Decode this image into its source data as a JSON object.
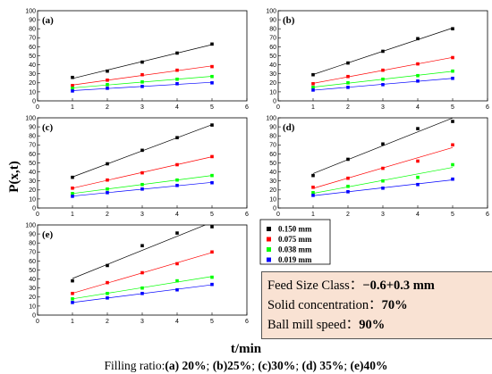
{
  "figure": {
    "ylabel": "P(x,t)",
    "xlabel": "t/min",
    "caption": {
      "prefix": "Filling ratio:",
      "parts": [
        "(a) 20%",
        "; ",
        "(b)25%",
        "; ",
        "(c)30%",
        "; ",
        "(d) 35%",
        "; ",
        "(e)40%"
      ]
    }
  },
  "info_box": {
    "lines": [
      {
        "label": "Feed  Size Class：",
        "value": "−0.6+0.3 mm"
      },
      {
        "label": "Solid concentration：",
        "value": "70%"
      },
      {
        "label": "Ball mill speed：",
        "value": "90%"
      }
    ]
  },
  "legend": [
    {
      "label": "0.150 mm",
      "color": "#000000"
    },
    {
      "label": "0.075 mm",
      "color": "#ff0000"
    },
    {
      "label": "0.038 mm",
      "color": "#00ff00"
    },
    {
      "label": "0.019 mm",
      "color": "#0000ff"
    }
  ],
  "chart_data": [
    {
      "type": "scatter",
      "panel_label": "(a)",
      "x": [
        1,
        2,
        3,
        4,
        5
      ],
      "xlim": [
        0,
        6
      ],
      "ylim": [
        0,
        100
      ],
      "xticks": [
        0,
        1,
        2,
        3,
        4,
        5,
        6
      ],
      "yticks": [
        0,
        10,
        20,
        30,
        40,
        50,
        60,
        70,
        80,
        90,
        100
      ],
      "series": [
        {
          "name": "0.150 mm",
          "color": "#000000",
          "values": [
            26,
            33,
            43,
            53,
            63
          ]
        },
        {
          "name": "0.075 mm",
          "color": "#ff0000",
          "values": [
            17,
            23,
            29,
            34,
            38
          ]
        },
        {
          "name": "0.038 mm",
          "color": "#00ff00",
          "values": [
            14,
            18,
            21,
            24,
            27
          ]
        },
        {
          "name": "0.019 mm",
          "color": "#0000ff",
          "values": [
            11,
            14,
            16,
            19,
            20
          ]
        }
      ]
    },
    {
      "type": "scatter",
      "panel_label": "(b)",
      "x": [
        1,
        2,
        3,
        4,
        5
      ],
      "xlim": [
        0,
        6
      ],
      "ylim": [
        0,
        100
      ],
      "xticks": [
        0,
        1,
        2,
        3,
        4,
        5,
        6
      ],
      "yticks": [
        0,
        10,
        20,
        30,
        40,
        50,
        60,
        70,
        80,
        90,
        100
      ],
      "series": [
        {
          "name": "0.150 mm",
          "color": "#000000",
          "values": [
            29,
            42,
            55,
            69,
            80
          ]
        },
        {
          "name": "0.075 mm",
          "color": "#ff0000",
          "values": [
            19,
            27,
            34,
            41,
            48
          ]
        },
        {
          "name": "0.038 mm",
          "color": "#00ff00",
          "values": [
            15,
            20,
            24,
            28,
            33
          ]
        },
        {
          "name": "0.019 mm",
          "color": "#0000ff",
          "values": [
            12,
            15,
            18,
            22,
            25
          ]
        }
      ]
    },
    {
      "type": "scatter",
      "panel_label": "(c)",
      "x": [
        1,
        2,
        3,
        4,
        5
      ],
      "xlim": [
        0,
        6
      ],
      "ylim": [
        0,
        100
      ],
      "xticks": [
        0,
        1,
        2,
        3,
        4,
        5,
        6
      ],
      "yticks": [
        0,
        10,
        20,
        30,
        40,
        50,
        60,
        70,
        80,
        90,
        100
      ],
      "series": [
        {
          "name": "0.150 mm",
          "color": "#000000",
          "values": [
            34,
            49,
            64,
            78,
            92
          ]
        },
        {
          "name": "0.075 mm",
          "color": "#ff0000",
          "values": [
            22,
            31,
            39,
            48,
            57
          ]
        },
        {
          "name": "0.038 mm",
          "color": "#00ff00",
          "values": [
            16,
            21,
            26,
            31,
            36
          ]
        },
        {
          "name": "0.019 mm",
          "color": "#0000ff",
          "values": [
            13,
            17,
            21,
            25,
            28
          ]
        }
      ]
    },
    {
      "type": "scatter",
      "panel_label": "(d)",
      "x": [
        1,
        2,
        3,
        4,
        5
      ],
      "xlim": [
        0,
        6
      ],
      "ylim": [
        0,
        100
      ],
      "xticks": [
        0,
        1,
        2,
        3,
        4,
        5,
        6
      ],
      "yticks": [
        0,
        10,
        20,
        30,
        40,
        50,
        60,
        70,
        80,
        90,
        100
      ],
      "series": [
        {
          "name": "0.150 mm",
          "color": "#000000",
          "values": [
            36,
            54,
            71,
            88,
            96
          ]
        },
        {
          "name": "0.075 mm",
          "color": "#ff0000",
          "values": [
            23,
            33,
            44,
            52,
            70
          ]
        },
        {
          "name": "0.038 mm",
          "color": "#00ff00",
          "values": [
            17,
            24,
            30,
            34,
            48
          ]
        },
        {
          "name": "0.019 mm",
          "color": "#0000ff",
          "values": [
            14,
            18,
            22,
            26,
            32
          ]
        }
      ]
    },
    {
      "type": "scatter",
      "panel_label": "(e)",
      "x": [
        1,
        2,
        3,
        4,
        5
      ],
      "xlim": [
        0,
        6
      ],
      "ylim": [
        0,
        100
      ],
      "xticks": [
        0,
        1,
        2,
        3,
        4,
        5,
        6
      ],
      "yticks": [
        0,
        10,
        20,
        30,
        40,
        50,
        60,
        70,
        80,
        90,
        100
      ],
      "series": [
        {
          "name": "0.150 mm",
          "color": "#000000",
          "values": [
            38,
            55,
            77,
            91,
            98
          ]
        },
        {
          "name": "0.075 mm",
          "color": "#ff0000",
          "values": [
            24,
            36,
            47,
            57,
            70
          ]
        },
        {
          "name": "0.038 mm",
          "color": "#00ff00",
          "values": [
            18,
            24,
            30,
            38,
            42
          ]
        },
        {
          "name": "0.019 mm",
          "color": "#0000ff",
          "values": [
            14,
            19,
            24,
            28,
            34
          ]
        }
      ]
    }
  ]
}
